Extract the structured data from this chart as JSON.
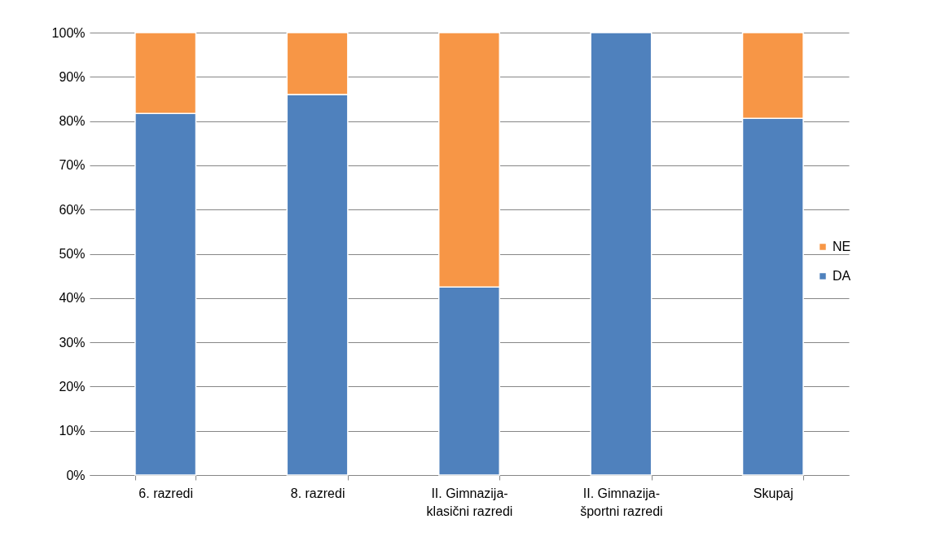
{
  "chart_data": {
    "type": "bar",
    "stacked": true,
    "categories": [
      "6. razredi",
      "8. razredi",
      "II. Gimnazija-\nklasični razredi",
      "II. Gimnazija-\nšportni razredi",
      "Skupaj"
    ],
    "series": [
      {
        "name": "DA",
        "color": "#4f81bd",
        "values": [
          81.7,
          86,
          42.5,
          100,
          80.6
        ]
      },
      {
        "name": "NE",
        "color": "#f79646",
        "values": [
          18.3,
          14,
          57.5,
          0,
          19.4
        ]
      }
    ],
    "ylim": [
      0,
      100
    ],
    "yticks": [
      {
        "value": 0,
        "label": "0%"
      },
      {
        "value": 10,
        "label": "10%"
      },
      {
        "value": 20,
        "label": "20%"
      },
      {
        "value": 30,
        "label": "30%"
      },
      {
        "value": 40,
        "label": "40%"
      },
      {
        "value": 50,
        "label": "50%"
      },
      {
        "value": 60,
        "label": "60%"
      },
      {
        "value": 70,
        "label": "70%"
      },
      {
        "value": 80,
        "label": "80%"
      },
      {
        "value": 90,
        "label": "90%"
      },
      {
        "value": 100,
        "label": "100%"
      }
    ],
    "grid": "y",
    "legend": "right"
  }
}
